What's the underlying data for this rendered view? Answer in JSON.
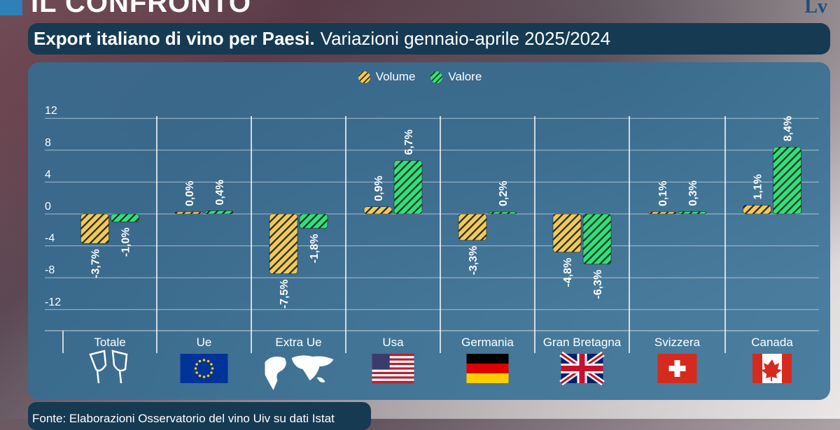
{
  "header": {
    "title": "IL CONFRONTO",
    "logo": "Lv"
  },
  "subtitle": {
    "bold": "Export italiano di vino per Paesi.",
    "rest": "Variazioni gennaio-aprile 2025/2024"
  },
  "footer": "Fonte: Elaborazioni Osservatorio del vino Uiv su dati Istat",
  "colors": {
    "volume": "#f2c85b",
    "valore": "#2fe07a",
    "panel": "#346e94",
    "title_bar": "#163a52"
  },
  "chart_data": {
    "type": "bar",
    "categories": [
      "Totale",
      "Ue",
      "Extra Ue",
      "Usa",
      "Germania",
      "Gran Bretagna",
      "Svizzera",
      "Canada"
    ],
    "category_icons": [
      "wine-glasses-icon",
      "eu-flag-icon",
      "world-map-icon",
      "usa-flag-icon",
      "germany-flag-icon",
      "uk-flag-icon",
      "switzerland-flag-icon",
      "canada-flag-icon"
    ],
    "series": [
      {
        "name": "Volume",
        "values": [
          -3.7,
          0.0,
          -7.5,
          0.9,
          -3.3,
          -4.8,
          0.1,
          1.1
        ],
        "labels": [
          "-3,7%",
          "0,0%",
          "-7,5%",
          "0,9%",
          "-3,3%",
          "-4,8%",
          "0,1%",
          "1,1%"
        ]
      },
      {
        "name": "Valore",
        "values": [
          -1.0,
          0.4,
          -1.8,
          6.7,
          0.2,
          -6.3,
          0.3,
          8.4
        ],
        "labels": [
          "-1,0%",
          "0,4%",
          "-1,8%",
          "6,7%",
          "0,2%",
          "-6,3%",
          "0,3%",
          "8,4%"
        ]
      }
    ],
    "yticks": [
      12,
      8,
      4,
      0,
      -4,
      -8,
      -12
    ],
    "ylim": [
      -15,
      12
    ],
    "grid": true,
    "legend": "top-center"
  }
}
